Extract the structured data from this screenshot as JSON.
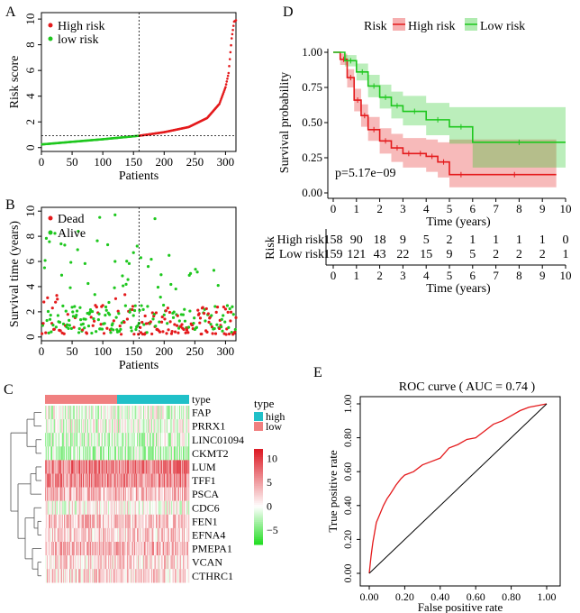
{
  "chart_data": [
    {
      "panel": "A",
      "type": "scatter",
      "xlabel": "Patients",
      "ylabel": "Risk score",
      "xlim": [
        0,
        317
      ],
      "ylim": [
        -0.3,
        10.5
      ],
      "xticks": [
        "0",
        "50",
        "100",
        "150",
        "200",
        "250",
        "300"
      ],
      "yticks": [
        "0",
        "2",
        "4",
        "6",
        "8",
        "10"
      ],
      "cutoff_patient": 159,
      "cutoff_score": 0.92,
      "legend": [
        "High risk",
        "low risk"
      ],
      "colors": {
        "high": "#e41a1c",
        "low": "#1ec71e"
      },
      "curve_anchors": [
        [
          1,
          0.25
        ],
        [
          50,
          0.45
        ],
        [
          100,
          0.65
        ],
        [
          159,
          0.92
        ],
        [
          200,
          1.2
        ],
        [
          240,
          1.6
        ],
        [
          270,
          2.3
        ],
        [
          290,
          3.4
        ],
        [
          300,
          4.7
        ],
        [
          305,
          5.8
        ],
        [
          310,
          8.5
        ],
        [
          314,
          9.8
        ],
        [
          317,
          9.9
        ]
      ]
    },
    {
      "panel": "B",
      "type": "scatter",
      "xlabel": "Patients",
      "ylabel": "Survival time (years)",
      "xlim": [
        0,
        317
      ],
      "ylim": [
        -0.3,
        10.3
      ],
      "xticks": [
        "0",
        "50",
        "100",
        "150",
        "200",
        "250",
        "300"
      ],
      "yticks": [
        "0",
        "2",
        "4",
        "6",
        "8",
        "10"
      ],
      "cutoff_patient": 159,
      "legend": [
        "Dead",
        "Alive"
      ],
      "colors": {
        "dead": "#e41a1c",
        "alive": "#1ec71e"
      }
    },
    {
      "panel": "C",
      "type": "heatmap",
      "genes": [
        "FAP",
        "PRRX1",
        "LINC01094",
        "CKMT2",
        "LUM",
        "TFF1",
        "PSCA",
        "CDC6",
        "FEN1",
        "EFNA4",
        "PMEPA1",
        "VCAN",
        "CTHRC1"
      ],
      "row_means": [
        -0.6,
        -0.3,
        -1.2,
        -2.0,
        6.5,
        6.0,
        3.5,
        0.5,
        3.0,
        2.5,
        3.8,
        2.0,
        2.2
      ],
      "type_legend_title": "type",
      "type_legend": [
        "high",
        "low"
      ],
      "type_colors": {
        "high": "#20c0c8",
        "low": "#f08080"
      },
      "col_annotation": "type",
      "scale_ticks": [
        "10",
        "5",
        "0",
        "−5"
      ],
      "scale_values": [
        10,
        5,
        0,
        -5
      ],
      "scale_range": [
        -8,
        12
      ]
    },
    {
      "panel": "D",
      "type": "line",
      "title": "",
      "xlabel": "Time (years)",
      "ylabel": "Survival probability",
      "xlim": [
        0,
        10
      ],
      "ylim": [
        0,
        1
      ],
      "xticks": [
        "0",
        "1",
        "2",
        "3",
        "4",
        "5",
        "6",
        "7",
        "8",
        "9",
        "10"
      ],
      "yticks": [
        "0.00",
        "0.25",
        "0.50",
        "0.75",
        "1.00"
      ],
      "legend_title": "Risk",
      "series": [
        {
          "name": "High risk",
          "color": "#e41a1c",
          "times": [
            0,
            0.3,
            0.6,
            0.9,
            1.2,
            1.5,
            2.0,
            2.5,
            3.0,
            3.5,
            4.0,
            4.5,
            5.0,
            6.0,
            9.6
          ],
          "surv": [
            1.0,
            0.95,
            0.82,
            0.66,
            0.55,
            0.45,
            0.37,
            0.32,
            0.28,
            0.28,
            0.26,
            0.22,
            0.13,
            0.13,
            0.13
          ],
          "lower": [
            1.0,
            0.91,
            0.75,
            0.58,
            0.47,
            0.37,
            0.28,
            0.22,
            0.18,
            0.18,
            0.15,
            0.11,
            0.04,
            0.04,
            0.04
          ],
          "upper": [
            1.0,
            0.99,
            0.88,
            0.74,
            0.63,
            0.54,
            0.46,
            0.42,
            0.39,
            0.39,
            0.38,
            0.36,
            0.38,
            0.38,
            0.38
          ]
        },
        {
          "name": "Low risk",
          "color": "#1ec71e",
          "times": [
            0,
            0.5,
            1.0,
            1.5,
            2.0,
            2.5,
            3.0,
            4.0,
            5.0,
            6.0,
            10.0
          ],
          "surv": [
            1.0,
            0.94,
            0.86,
            0.76,
            0.68,
            0.62,
            0.58,
            0.52,
            0.47,
            0.36,
            0.36
          ],
          "lower": [
            1.0,
            0.9,
            0.8,
            0.68,
            0.6,
            0.53,
            0.48,
            0.41,
            0.35,
            0.18,
            0.18
          ],
          "upper": [
            1.0,
            0.98,
            0.92,
            0.84,
            0.77,
            0.72,
            0.69,
            0.64,
            0.61,
            0.61,
            0.61
          ]
        }
      ],
      "pvalue": "p=5.17e−09"
    },
    {
      "panel": "D-risk-table",
      "type": "table",
      "row_title": "Risk",
      "xlabel": "Time (years)",
      "columns": [
        "0",
        "1",
        "2",
        "3",
        "4",
        "5",
        "6",
        "7",
        "8",
        "9",
        "10"
      ],
      "rows": [
        {
          "name": "High risk",
          "color": "#e41a1c",
          "values": [
            "158",
            "90",
            "18",
            "9",
            "5",
            "2",
            "1",
            "1",
            "1",
            "1",
            "0"
          ]
        },
        {
          "name": "Low risk",
          "color": "#1ec71e",
          "values": [
            "159",
            "121",
            "43",
            "22",
            "15",
            "9",
            "5",
            "2",
            "2",
            "2",
            "1"
          ]
        }
      ]
    },
    {
      "panel": "E",
      "type": "line",
      "title": "ROC curve ( AUC =  0.74 )",
      "xlabel": "False positive rate",
      "ylabel": "True positive rate",
      "xlim": [
        0,
        1
      ],
      "ylim": [
        0,
        1
      ],
      "xticks": [
        "0.00",
        "0.20",
        "0.40",
        "0.60",
        "0.80",
        "1.00"
      ],
      "yticks": [
        "0.00",
        "0.20",
        "0.40",
        "0.60",
        "0.80",
        "1.00"
      ],
      "series": [
        {
          "name": "ROC",
          "color": "#e41a1c",
          "fpr": [
            0,
            0.005,
            0.01,
            0.02,
            0.04,
            0.06,
            0.08,
            0.1,
            0.12,
            0.15,
            0.18,
            0.2,
            0.25,
            0.3,
            0.35,
            0.4,
            0.45,
            0.5,
            0.55,
            0.6,
            0.65,
            0.7,
            0.75,
            0.8,
            0.85,
            0.9,
            0.95,
            1.0
          ],
          "tpr": [
            0,
            0.05,
            0.1,
            0.18,
            0.3,
            0.35,
            0.4,
            0.44,
            0.47,
            0.52,
            0.56,
            0.58,
            0.6,
            0.64,
            0.66,
            0.68,
            0.74,
            0.76,
            0.79,
            0.8,
            0.84,
            0.88,
            0.9,
            0.93,
            0.96,
            0.98,
            0.99,
            1.0
          ]
        },
        {
          "name": "diagonal",
          "color": "#000000",
          "fpr": [
            0,
            1
          ],
          "tpr": [
            0,
            1
          ]
        }
      ]
    }
  ],
  "panel_labels": {
    "a": "A",
    "b": "B",
    "c": "C",
    "d": "D",
    "e": "E"
  }
}
